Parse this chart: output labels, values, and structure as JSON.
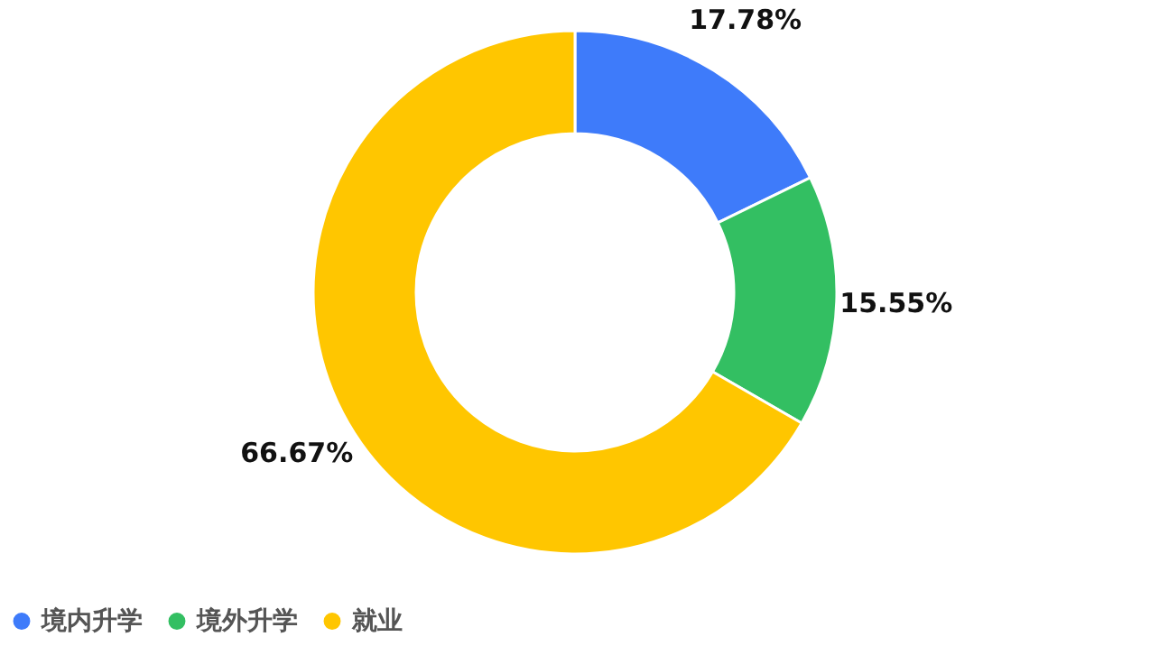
{
  "chart_data": {
    "type": "donut",
    "categories": [
      "境内升学",
      "境外升学",
      "就业"
    ],
    "values": [
      17.78,
      15.55,
      66.67
    ],
    "colors": [
      "#3e7bfa",
      "#33bf62",
      "#ffc600"
    ],
    "value_labels": [
      "17.78%",
      "15.55%",
      "66.67%"
    ],
    "legend": "bottom"
  }
}
